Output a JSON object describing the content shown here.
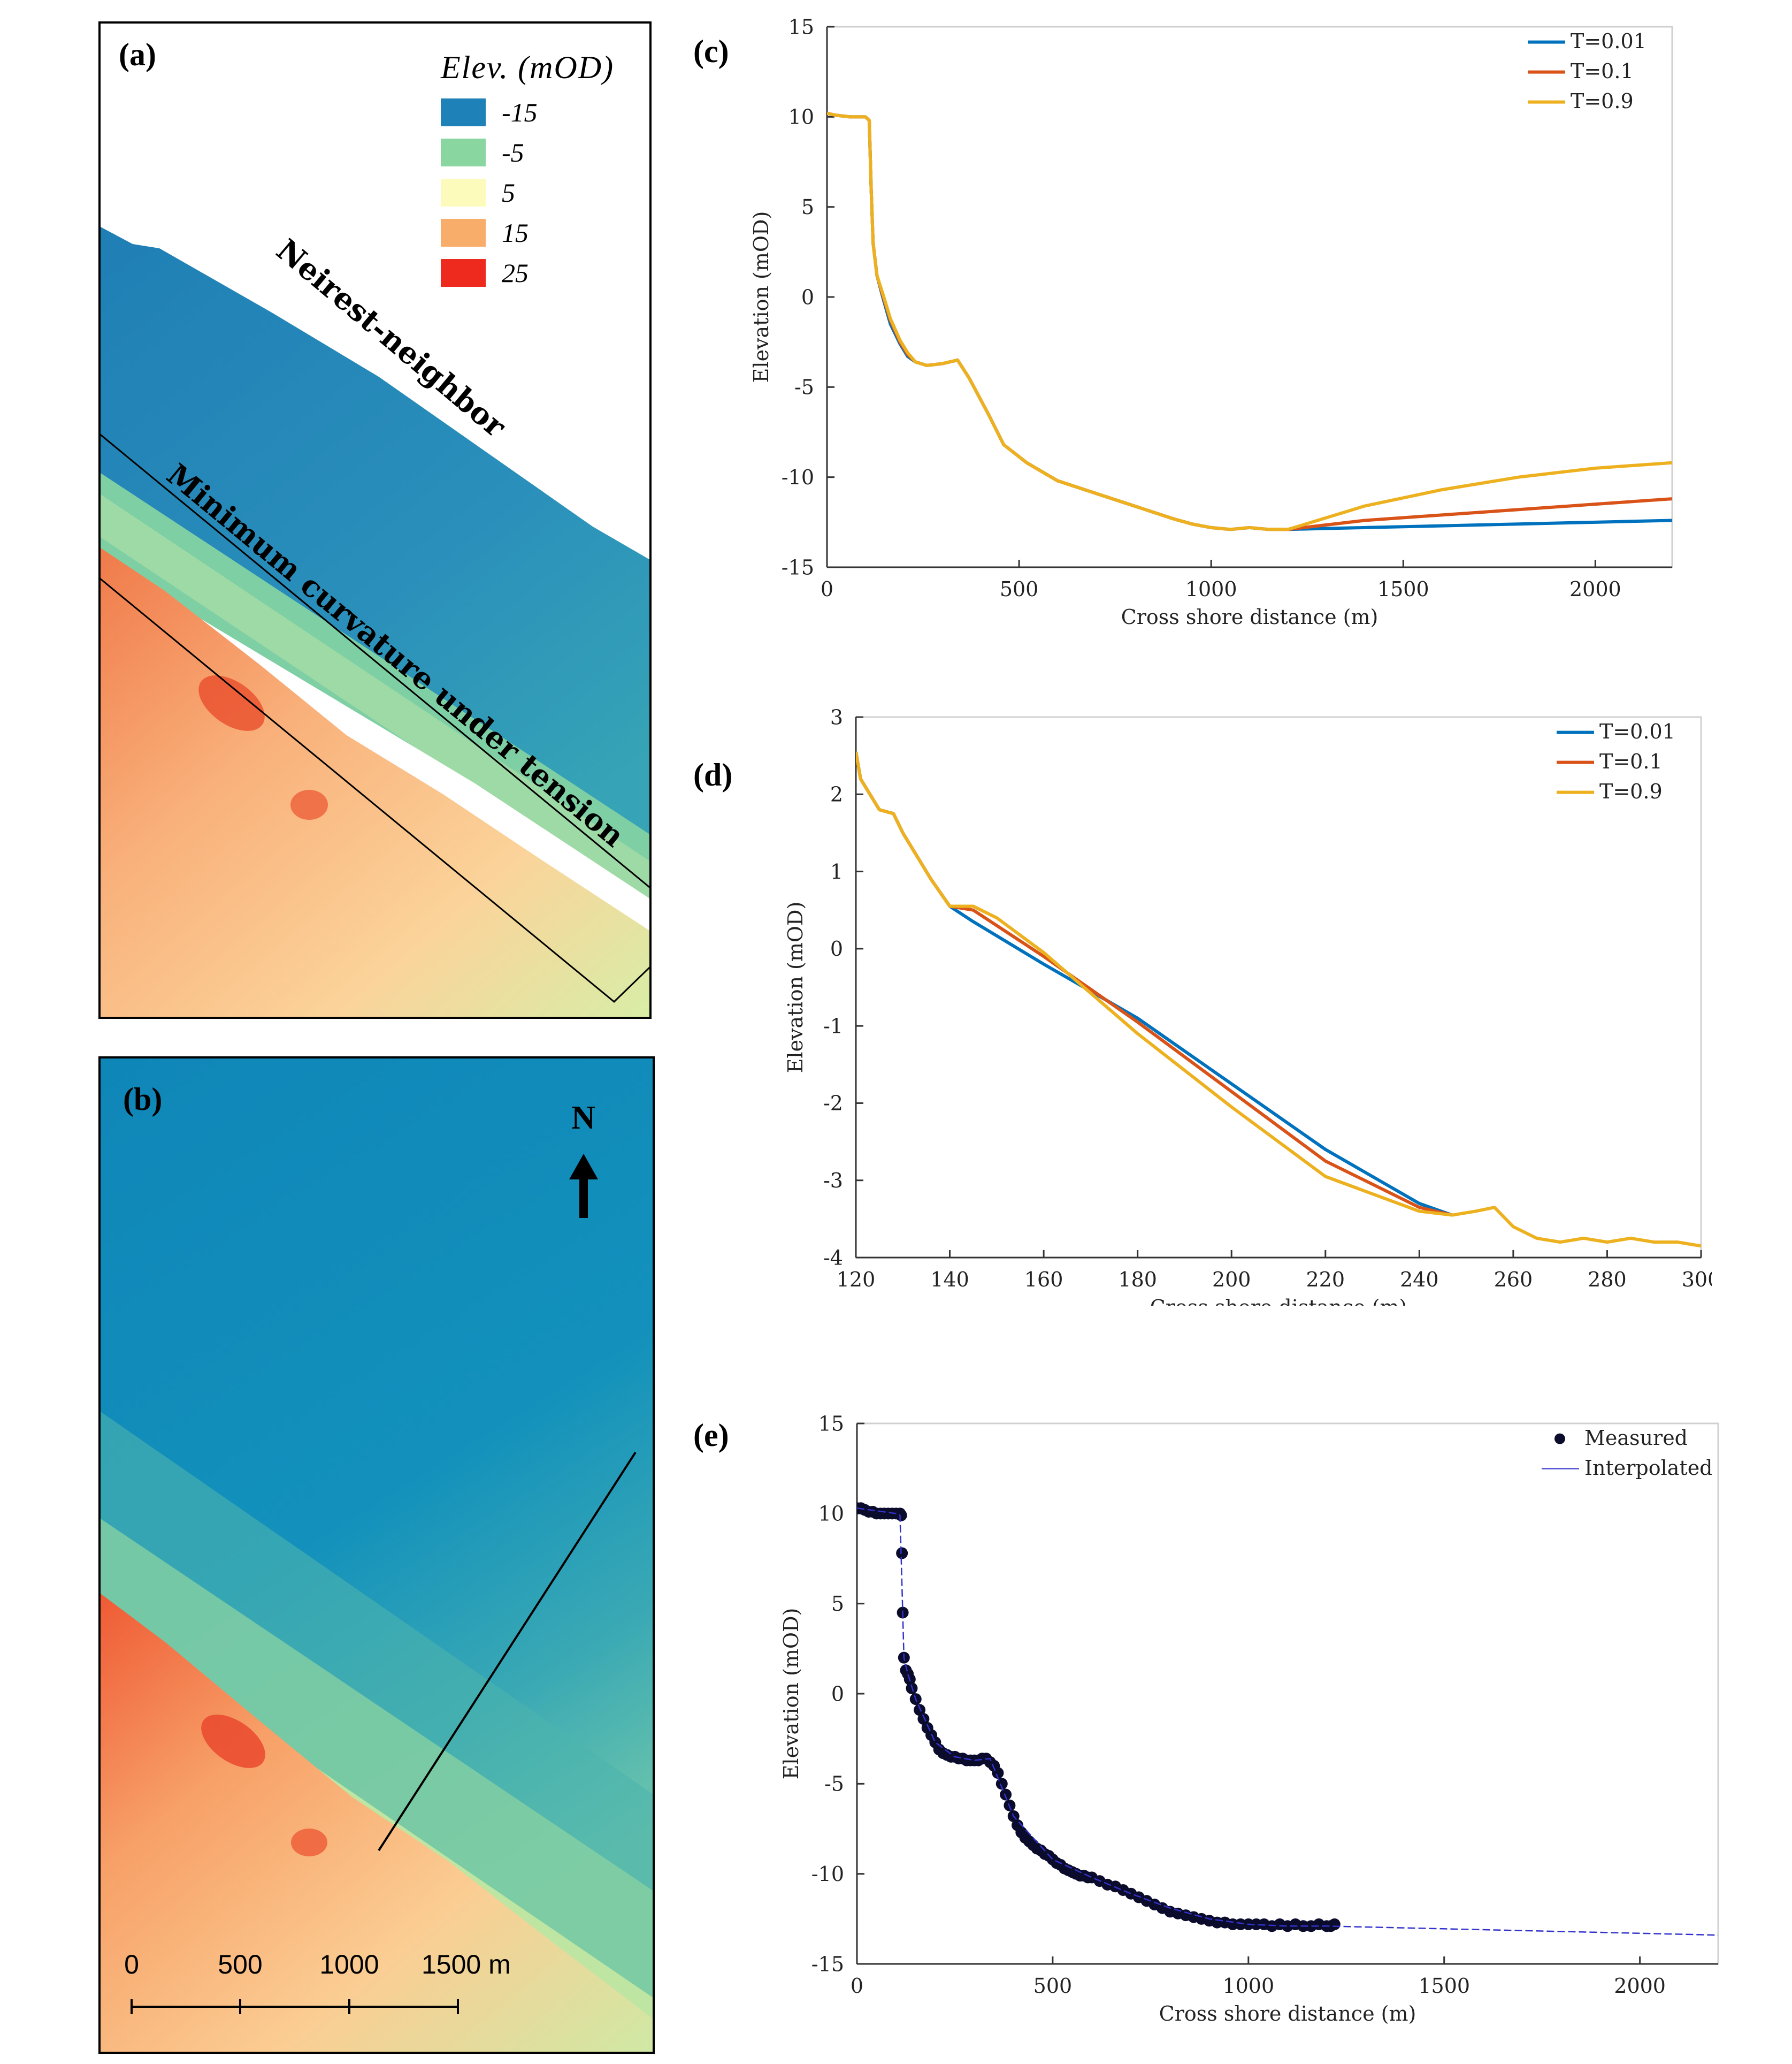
{
  "panels": {
    "a": {
      "label": "(a)",
      "legend": {
        "title": "Elev. (mOD)",
        "entries": [
          {
            "label": "-15",
            "color": "#1e82b8"
          },
          {
            "label": "-5",
            "color": "#8ad6a0"
          },
          {
            "label": "5",
            "color": "#fdfbbb"
          },
          {
            "label": "15",
            "color": "#f9ad6a"
          },
          {
            "label": "25",
            "color": "#ee2a1f"
          }
        ]
      },
      "annotations": {
        "upper": "Neirest-neighbor",
        "lower": "Minimum curvature under tension"
      }
    },
    "b": {
      "label": "(b)",
      "north_label": "N",
      "scale_labels": [
        "0",
        "500",
        "1000",
        "1500 m"
      ]
    },
    "c": {
      "label": "(c)"
    },
    "d": {
      "label": "(d)"
    },
    "e": {
      "label": "(e)"
    }
  },
  "colors": {
    "blue": "#0072bd",
    "orange": "#d95319",
    "yellow": "#edb120",
    "measured": "#0b0b2b",
    "interpolated": "#3333cc"
  },
  "chart_data": [
    {
      "id": "c",
      "type": "line",
      "title": "",
      "xlabel": "Cross shore distance (m)",
      "ylabel": "Elevation (mOD)",
      "xlim": [
        0,
        2200
      ],
      "ylim": [
        -15,
        15
      ],
      "xticks": [
        0,
        500,
        1000,
        1500,
        2000
      ],
      "yticks": [
        -15,
        -10,
        -5,
        0,
        5,
        10,
        15
      ],
      "legend_position": "top-right",
      "series": [
        {
          "name": "T=0.01",
          "color": "#0072bd",
          "x": [
            0,
            20,
            60,
            100,
            110,
            115,
            120,
            130,
            145,
            165,
            190,
            210,
            230,
            260,
            300,
            340,
            370,
            420,
            460,
            520,
            600,
            700,
            800,
            900,
            950,
            1000,
            1050,
            1100,
            1150,
            1200,
            1400,
            1600,
            1800,
            2000,
            2200
          ],
          "y": [
            10.2,
            10.1,
            10,
            10,
            9.8,
            6,
            3,
            1.2,
            0,
            -1.5,
            -2.6,
            -3.3,
            -3.6,
            -3.8,
            -3.7,
            -3.5,
            -4.5,
            -6.5,
            -8.2,
            -9.2,
            -10.2,
            -10.9,
            -11.6,
            -12.3,
            -12.6,
            -12.8,
            -12.9,
            -12.8,
            -12.9,
            -12.9,
            -12.8,
            -12.7,
            -12.6,
            -12.5,
            -12.4
          ]
        },
        {
          "name": "T=0.1",
          "color": "#d95319",
          "x": [
            0,
            20,
            60,
            100,
            110,
            115,
            120,
            130,
            145,
            165,
            190,
            210,
            230,
            260,
            300,
            340,
            370,
            420,
            460,
            520,
            600,
            700,
            800,
            900,
            950,
            1000,
            1050,
            1100,
            1150,
            1200,
            1400,
            1600,
            1800,
            2000,
            2200
          ],
          "y": [
            10.2,
            10.1,
            10,
            10,
            9.8,
            6,
            3,
            1.2,
            0.1,
            -1.3,
            -2.5,
            -3.2,
            -3.6,
            -3.8,
            -3.7,
            -3.5,
            -4.5,
            -6.5,
            -8.2,
            -9.2,
            -10.2,
            -10.9,
            -11.6,
            -12.3,
            -12.6,
            -12.8,
            -12.9,
            -12.8,
            -12.9,
            -12.9,
            -12.4,
            -12.1,
            -11.8,
            -11.5,
            -11.2
          ]
        },
        {
          "name": "T=0.9",
          "color": "#edb120",
          "x": [
            0,
            20,
            60,
            100,
            110,
            115,
            120,
            130,
            145,
            165,
            190,
            210,
            230,
            260,
            300,
            340,
            370,
            420,
            460,
            520,
            600,
            700,
            800,
            900,
            950,
            1000,
            1050,
            1100,
            1150,
            1200,
            1400,
            1600,
            1800,
            2000,
            2200
          ],
          "y": [
            10.2,
            10.1,
            10,
            10,
            9.8,
            6,
            3,
            1.2,
            0.2,
            -1.2,
            -2.4,
            -3.1,
            -3.6,
            -3.8,
            -3.7,
            -3.5,
            -4.5,
            -6.5,
            -8.2,
            -9.2,
            -10.2,
            -10.9,
            -11.6,
            -12.3,
            -12.6,
            -12.8,
            -12.9,
            -12.8,
            -12.9,
            -12.9,
            -11.6,
            -10.7,
            -10,
            -9.5,
            -9.2
          ]
        }
      ]
    },
    {
      "id": "d",
      "type": "line",
      "title": "",
      "xlabel": "Cross shore distance (m)",
      "ylabel": "Elevation (mOD)",
      "xlim": [
        120,
        300
      ],
      "ylim": [
        -4,
        3
      ],
      "xticks": [
        120,
        140,
        160,
        180,
        200,
        220,
        240,
        260,
        280,
        300
      ],
      "yticks": [
        -4,
        -3,
        -2,
        -1,
        0,
        1,
        2,
        3
      ],
      "legend_position": "top-right",
      "series": [
        {
          "name": "T=0.01",
          "color": "#0072bd",
          "x": [
            120,
            121,
            123,
            125,
            128,
            130,
            133,
            136,
            140,
            145,
            160,
            180,
            200,
            220,
            240,
            247
          ],
          "y": [
            2.55,
            2.2,
            2,
            1.8,
            1.75,
            1.5,
            1.2,
            0.9,
            0.55,
            0.35,
            -0.2,
            -0.9,
            -1.75,
            -2.6,
            -3.3,
            -3.45
          ]
        },
        {
          "name": "T=0.1",
          "color": "#d95319",
          "x": [
            120,
            121,
            123,
            125,
            128,
            130,
            133,
            136,
            140,
            145,
            160,
            180,
            200,
            220,
            240,
            247
          ],
          "y": [
            2.55,
            2.2,
            2,
            1.8,
            1.75,
            1.5,
            1.2,
            0.9,
            0.55,
            0.5,
            -0.1,
            -0.95,
            -1.85,
            -2.75,
            -3.35,
            -3.45
          ]
        },
        {
          "name": "T=0.9",
          "color": "#edb120",
          "x": [
            120,
            121,
            123,
            125,
            128,
            130,
            133,
            136,
            140,
            145,
            150,
            160,
            180,
            200,
            220,
            240,
            247,
            252,
            256,
            260,
            265,
            270,
            275,
            280,
            285,
            290,
            295,
            300
          ],
          "y": [
            2.55,
            2.2,
            2,
            1.8,
            1.75,
            1.5,
            1.2,
            0.9,
            0.55,
            0.55,
            0.4,
            -0.05,
            -1.1,
            -2.05,
            -2.95,
            -3.4,
            -3.45,
            -3.4,
            -3.35,
            -3.6,
            -3.75,
            -3.8,
            -3.75,
            -3.8,
            -3.75,
            -3.8,
            -3.8,
            -3.85
          ]
        }
      ]
    },
    {
      "id": "e",
      "type": "scatter",
      "title": "",
      "xlabel": "Cross shore distance (m)",
      "ylabel": "Elevation (mOD)",
      "xlim": [
        0,
        2200
      ],
      "ylim": [
        -15,
        15
      ],
      "xticks": [
        0,
        500,
        1000,
        1500,
        2000
      ],
      "yticks": [
        -15,
        -10,
        -5,
        0,
        5,
        10,
        15
      ],
      "legend_position": "top-right",
      "series": [
        {
          "name": "Measured",
          "color": "#0b0b2b",
          "marker": "dot",
          "x": [
            0,
            10,
            20,
            30,
            40,
            50,
            60,
            70,
            80,
            90,
            100,
            110,
            113,
            115,
            117,
            120,
            125,
            130,
            135,
            140,
            150,
            160,
            170,
            180,
            190,
            200,
            210,
            220,
            230,
            240,
            250,
            260,
            270,
            280,
            290,
            300,
            310,
            320,
            330,
            340,
            350,
            360,
            370,
            380,
            390,
            400,
            410,
            420,
            430,
            440,
            450,
            460,
            470,
            480,
            490,
            500,
            510,
            520,
            530,
            540,
            550,
            560,
            570,
            580,
            590,
            600,
            620,
            640,
            660,
            680,
            700,
            720,
            740,
            760,
            780,
            800,
            820,
            840,
            860,
            880,
            900,
            920,
            940,
            960,
            980,
            1000,
            1020,
            1040,
            1060,
            1080,
            1100,
            1120,
            1140,
            1160,
            1180,
            1200,
            1210,
            1220
          ],
          "y": [
            10.3,
            10.3,
            10.2,
            10.1,
            10.1,
            10,
            10,
            10,
            10,
            10,
            10,
            10,
            9.9,
            7.8,
            4.5,
            2,
            1.3,
            1.1,
            0.8,
            0.3,
            -0.3,
            -0.9,
            -1.4,
            -1.9,
            -2.3,
            -2.7,
            -3.1,
            -3.3,
            -3.4,
            -3.5,
            -3.5,
            -3.6,
            -3.6,
            -3.7,
            -3.7,
            -3.7,
            -3.7,
            -3.6,
            -3.6,
            -3.8,
            -4,
            -4.4,
            -5,
            -5.6,
            -6.2,
            -6.8,
            -7.3,
            -7.7,
            -8,
            -8.2,
            -8.4,
            -8.6,
            -8.7,
            -8.9,
            -9,
            -9.2,
            -9.4,
            -9.5,
            -9.7,
            -9.8,
            -9.9,
            -10,
            -10.1,
            -10.1,
            -10.2,
            -10.2,
            -10.4,
            -10.6,
            -10.7,
            -10.9,
            -11.1,
            -11.3,
            -11.5,
            -11.7,
            -11.9,
            -12.1,
            -12.2,
            -12.3,
            -12.4,
            -12.5,
            -12.6,
            -12.7,
            -12.7,
            -12.8,
            -12.8,
            -12.8,
            -12.8,
            -12.8,
            -12.9,
            -12.8,
            -12.9,
            -12.8,
            -12.9,
            -12.9,
            -12.8,
            -12.9,
            -12.9,
            -12.8
          ]
        },
        {
          "name": "Interpolated",
          "color": "#3333cc",
          "marker": "line",
          "x": [
            0,
            100,
            110,
            115,
            120,
            130,
            150,
            200,
            250,
            300,
            340,
            400,
            500,
            600,
            700,
            800,
            900,
            1000,
            1100,
            1200,
            1400,
            1600,
            1800,
            2000,
            2200
          ],
          "y": [
            10.3,
            10,
            9.9,
            6,
            2,
            1.1,
            -0.3,
            -2.7,
            -3.5,
            -3.7,
            -3.6,
            -6.8,
            -9.2,
            -10.2,
            -11.1,
            -11.9,
            -12.5,
            -12.8,
            -12.9,
            -12.9,
            -13,
            -13.1,
            -13.2,
            -13.3,
            -13.4
          ]
        }
      ]
    }
  ]
}
